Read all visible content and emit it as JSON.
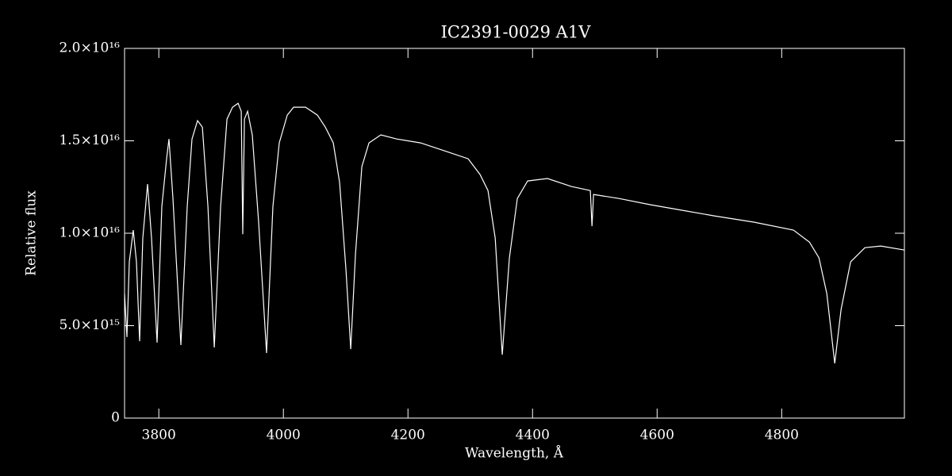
{
  "chart_data": {
    "type": "line",
    "title": "IC2391-0029  A1V",
    "xlabel": "Wavelength, Å",
    "ylabel": "Relative flux",
    "xlim": [
      3745,
      4997
    ],
    "ylim": [
      0,
      2e+16
    ],
    "xticks": [
      3800,
      4000,
      4200,
      4400,
      4600,
      4800
    ],
    "yticks": [
      0,
      {
        "value": 5000000000000000.0,
        "label": "5.0×10¹⁵"
      },
      {
        "value": 1e+16,
        "label": "1.0×10¹⁶"
      },
      {
        "value": 1.5e+16,
        "label": "1.5×10¹⁶"
      },
      {
        "value": 2e+16,
        "label": "2.0×10¹⁶"
      }
    ],
    "grid": false,
    "series": [
      {
        "color": "#ffffff",
        "x": [
          3745.0,
          3748.8,
          3752.6,
          3759.0,
          3764.1,
          3769.2,
          3774.3,
          3781.9,
          3788.3,
          3797.2,
          3804.9,
          3812.5,
          3816.3,
          3822.7,
          3835.4,
          3845.6,
          3853.3,
          3862.2,
          3869.9,
          3878.8,
          3889.0,
          3899.2,
          3909.4,
          3918.3,
          3927.2,
          3932.3,
          3934.8,
          3937.4,
          3942.5,
          3950.1,
          3960.3,
          3973.0,
          3983.2,
          3993.4,
          4006.2,
          4016.4,
          4035.5,
          4054.6,
          4067.3,
          4080.1,
          4090.3,
          4100.5,
          4108.1,
          4115.7,
          4125.9,
          4137.4,
          4156.5,
          4182.0,
          4220.2,
          4258.4,
          4296.6,
          4315.8,
          4328.5,
          4340.0,
          4351.4,
          4362.9,
          4375.6,
          4392.2,
          4424.0,
          4462.3,
          4492.8,
          4495.4,
          4498.0,
          4538.7,
          4589.7,
          4640.6,
          4691.6,
          4755.3,
          4819.0,
          4844.5,
          4859.8,
          4872.5,
          4885.2,
          4895.4,
          4910.7,
          4933.6,
          4959.1,
          4997.3
        ],
        "values": [
          6740000000000000.0,
          4380000000000000.0,
          8450000000000000.0,
          1.017e+16,
          8450000000000000.0,
          4160000000000000.0,
          9740000000000000.0,
          1.266e+16,
          9740000000000000.0,
          4080000000000000.0,
          1.145e+16,
          1.403e+16,
          1.51e+16,
          1.188e+16,
          3950000000000000.0,
          1.145e+16,
          1.51e+16,
          1.609e+16,
          1.574e+16,
          1.145e+16,
          3820000000000000.0,
          1.145e+16,
          1.617e+16,
          1.682e+16,
          1.703e+16,
          1.66e+16,
          9950000000000000.0,
          1.617e+16,
          1.66e+16,
          1.532e+16,
          1.06e+16,
          3520000000000000.0,
          1.145e+16,
          1.489e+16,
          1.639e+16,
          1.682e+16,
          1.682e+16,
          1.639e+16,
          1.574e+16,
          1.489e+16,
          1.274e+16,
          8020000000000000.0,
          3730000000000000.0,
          8880000000000000.0,
          1.36e+16,
          1.489e+16,
          1.532e+16,
          1.51e+16,
          1.489e+16,
          1.446e+16,
          1.403e+16,
          1.317e+16,
          1.231e+16,
          9740000000000000.0,
          3430000000000000.0,
          8670000000000000.0,
          1.188e+16,
          1.283e+16,
          1.296e+16,
          1.253e+16,
          1.231e+16,
          1.038e+16,
          1.21e+16,
          1.188e+16,
          1.154e+16,
          1.124e+16,
          1.094e+16,
          1.06e+16,
          1.017e+16,
          9520000000000000.0,
          8670000000000000.0,
          6740000000000000.0,
          2960000000000000.0,
          5880000000000000.0,
          8450000000000000.0,
          9220000000000000.0,
          9310000000000000.0,
          9090000000000000.0
        ]
      }
    ]
  }
}
